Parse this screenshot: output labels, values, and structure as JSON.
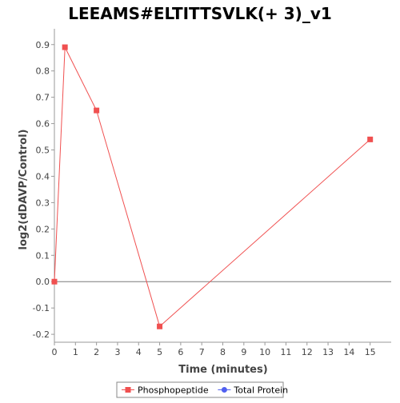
{
  "chart_data": {
    "type": "line",
    "title": "LEEAMS#ELTITTSVLK(+ 3)_v1",
    "xlabel": "Time (minutes)",
    "ylabel": "log2(dDAVP/Control)",
    "xlim": [
      0,
      16
    ],
    "ylim": [
      -0.23,
      0.96
    ],
    "x_ticks": [
      0,
      1,
      2,
      3,
      4,
      5,
      6,
      7,
      8,
      9,
      10,
      11,
      12,
      13,
      14,
      15
    ],
    "y_ticks": [
      -0.2,
      -0.1,
      0.0,
      0.1,
      0.2,
      0.3,
      0.4,
      0.5,
      0.6,
      0.7,
      0.8,
      0.9
    ],
    "y_tick_labels": [
      "-0.2",
      "-0.1",
      "0.0",
      "0.1",
      "0.2",
      "0.3",
      "0.4",
      "0.5",
      "0.6",
      "0.7",
      "0.8",
      "0.9"
    ],
    "zero_line": true,
    "grid": false,
    "legend_position": "bottom-center",
    "series": [
      {
        "name": "Phosphopeptide",
        "color": "#f05050",
        "marker": "square",
        "x": [
          0,
          0.5,
          2,
          5,
          15
        ],
        "y": [
          0.0,
          0.89,
          0.65,
          -0.17,
          0.54
        ]
      },
      {
        "name": "Total Protein",
        "color": "#5060f0",
        "marker": "circle",
        "x": [],
        "y": []
      }
    ]
  }
}
